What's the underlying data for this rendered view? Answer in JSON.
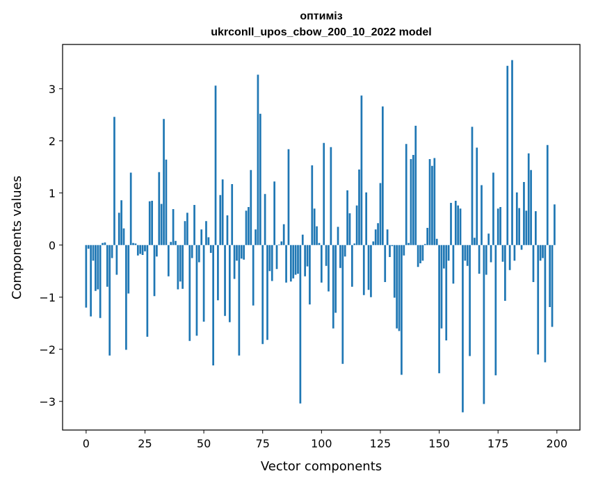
{
  "chart_data": {
    "type": "bar",
    "title_lines": [
      "оптиміз",
      "ukrconll_upos_cbow_200_10_2022 model"
    ],
    "xlabel": "Vector components",
    "ylabel": "Components values",
    "xlim": [
      -10,
      209.8
    ],
    "ylim": [
      -3.55,
      3.85
    ],
    "xticks": [
      0,
      25,
      50,
      75,
      100,
      125,
      150,
      175,
      200
    ],
    "xtick_labels": [
      "0",
      "25",
      "50",
      "75",
      "100",
      "125",
      "150",
      "175",
      "200"
    ],
    "yticks": [
      -3,
      -2,
      -1,
      0,
      1,
      2,
      3
    ],
    "ytick_labels": [
      "−3",
      "−2",
      "−1",
      "0",
      "1",
      "2",
      "3"
    ],
    "grid": false,
    "bar_color": "#1f77b4",
    "values": [
      -1.2,
      -0.07,
      -1.37,
      -0.3,
      -0.88,
      -0.85,
      -1.4,
      0.04,
      0.05,
      -0.8,
      -2.12,
      -0.25,
      2.46,
      -0.57,
      0.62,
      0.86,
      0.32,
      -2.01,
      -0.93,
      1.39,
      0.04,
      0.03,
      -0.2,
      -0.17,
      -0.19,
      -0.12,
      -1.76,
      0.84,
      0.85,
      -0.98,
      -0.22,
      1.4,
      0.79,
      2.42,
      1.64,
      -0.6,
      0.06,
      0.69,
      0.08,
      -0.85,
      -0.7,
      -0.84,
      0.46,
      0.62,
      -1.84,
      -0.25,
      0.77,
      -1.74,
      -0.33,
      0.3,
      -1.47,
      0.46,
      0.15,
      -0.15,
      -2.31,
      3.06,
      -1.06,
      0.96,
      1.26,
      -1.36,
      0.57,
      -1.48,
      1.17,
      -0.65,
      -0.3,
      -2.12,
      -0.26,
      -0.28,
      0.66,
      0.73,
      1.44,
      -1.16,
      0.3,
      3.27,
      2.52,
      -1.9,
      0.98,
      -1.82,
      -0.5,
      -0.69,
      1.22,
      -0.46,
      0.01,
      0.07,
      0.4,
      -0.72,
      1.84,
      -0.7,
      -0.64,
      -0.57,
      -0.55,
      -3.04,
      0.2,
      -0.6,
      -0.41,
      -1.14,
      1.53,
      0.7,
      0.36,
      0.04,
      -0.72,
      1.96,
      -0.4,
      -0.89,
      1.88,
      -1.6,
      -1.3,
      0.35,
      -0.44,
      -2.28,
      -0.22,
      1.05,
      0.61,
      -0.8,
      0.03,
      0.76,
      1.45,
      2.87,
      -0.96,
      1.01,
      -0.86,
      -1.0,
      0.07,
      0.3,
      0.42,
      1.19,
      2.66,
      -0.71,
      0.3,
      -0.23,
      -0.02,
      -1.01,
      -1.6,
      -1.65,
      -2.49,
      -0.2,
      1.94,
      0.04,
      1.65,
      1.73,
      2.29,
      -0.42,
      -0.35,
      -0.3,
      0.02,
      0.33,
      1.65,
      1.52,
      1.67,
      0.12,
      -2.46,
      -1.6,
      -0.45,
      -1.83,
      -0.3,
      0.81,
      -0.74,
      0.85,
      0.76,
      0.7,
      -3.21,
      -0.3,
      -0.4,
      -2.13,
      2.27,
      0.14,
      1.87,
      -0.55,
      1.15,
      -3.05,
      -0.57,
      0.22,
      -0.33,
      1.39,
      -2.5,
      0.7,
      0.73,
      -0.32,
      -1.07,
      3.44,
      -0.48,
      3.55,
      -0.3,
      1.01,
      0.71,
      -0.09,
      1.21,
      0.66,
      1.76,
      1.44,
      -0.71,
      0.65,
      -2.1,
      -0.3,
      -0.25,
      -2.25,
      1.92,
      -1.19,
      -1.57,
      0.78
    ]
  }
}
